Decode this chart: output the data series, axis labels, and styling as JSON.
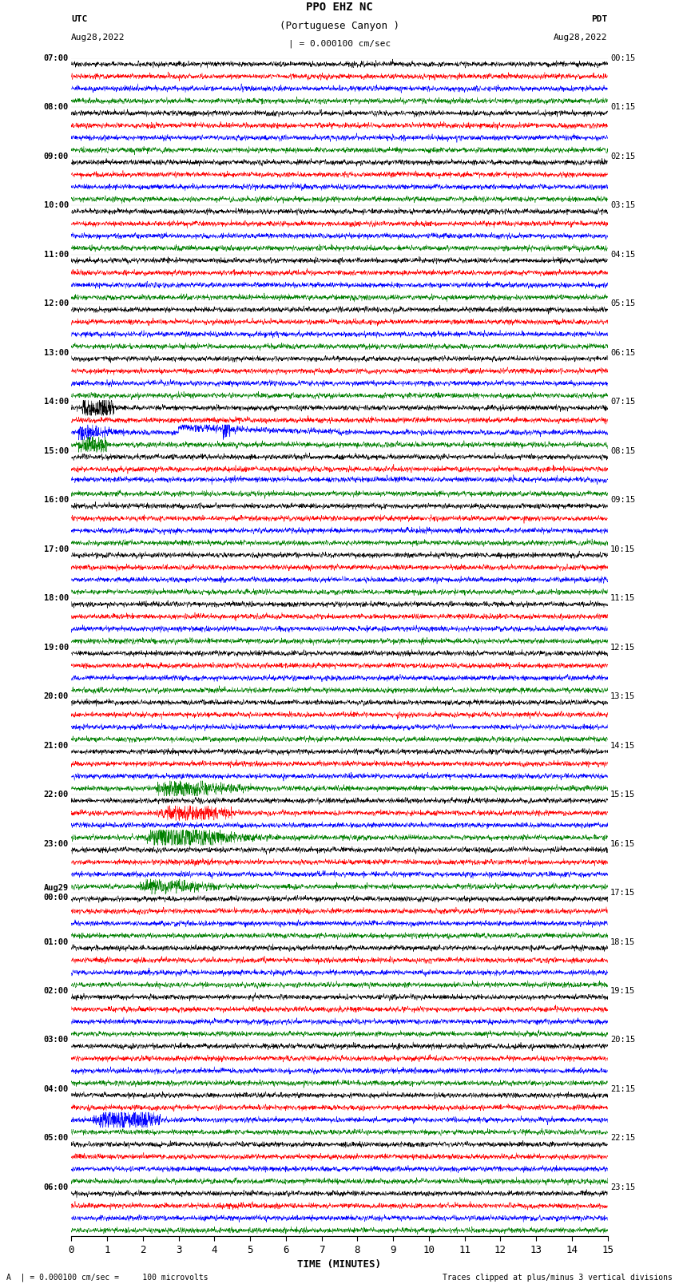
{
  "title_line1": "PPO EHZ NC",
  "title_line2": "(Portuguese Canyon )",
  "scale_label": "| = 0.000100 cm/sec",
  "utc_label": "UTC",
  "pdt_label": "PDT",
  "date_left": "Aug28,2022",
  "date_right": "Aug28,2022",
  "xlabel": "TIME (MINUTES)",
  "footer_left": "A  | = 0.000100 cm/sec =     100 microvolts",
  "footer_right": "Traces clipped at plus/minus 3 vertical divisions",
  "bg_color": "#ffffff",
  "trace_colors": [
    "black",
    "red",
    "blue",
    "green"
  ],
  "utc_times_left": [
    "07:00",
    "08:00",
    "09:00",
    "10:00",
    "11:00",
    "12:00",
    "13:00",
    "14:00",
    "15:00",
    "16:00",
    "17:00",
    "18:00",
    "19:00",
    "20:00",
    "21:00",
    "22:00",
    "23:00",
    "Aug29\n00:00",
    "01:00",
    "02:00",
    "03:00",
    "04:00",
    "05:00",
    "06:00"
  ],
  "pdt_times_right": [
    "00:15",
    "01:15",
    "02:15",
    "03:15",
    "04:15",
    "05:15",
    "06:15",
    "07:15",
    "08:15",
    "09:15",
    "10:15",
    "11:15",
    "12:15",
    "13:15",
    "14:15",
    "15:15",
    "16:15",
    "17:15",
    "18:15",
    "19:15",
    "20:15",
    "21:15",
    "22:15",
    "23:15"
  ],
  "n_rows": 24,
  "traces_per_row": 4,
  "xmin": 0,
  "xmax": 15,
  "xticks": [
    0,
    1,
    2,
    3,
    4,
    5,
    6,
    7,
    8,
    9,
    10,
    11,
    12,
    13,
    14,
    15
  ],
  "noise_amplitude": 0.08,
  "n_points": 2700
}
